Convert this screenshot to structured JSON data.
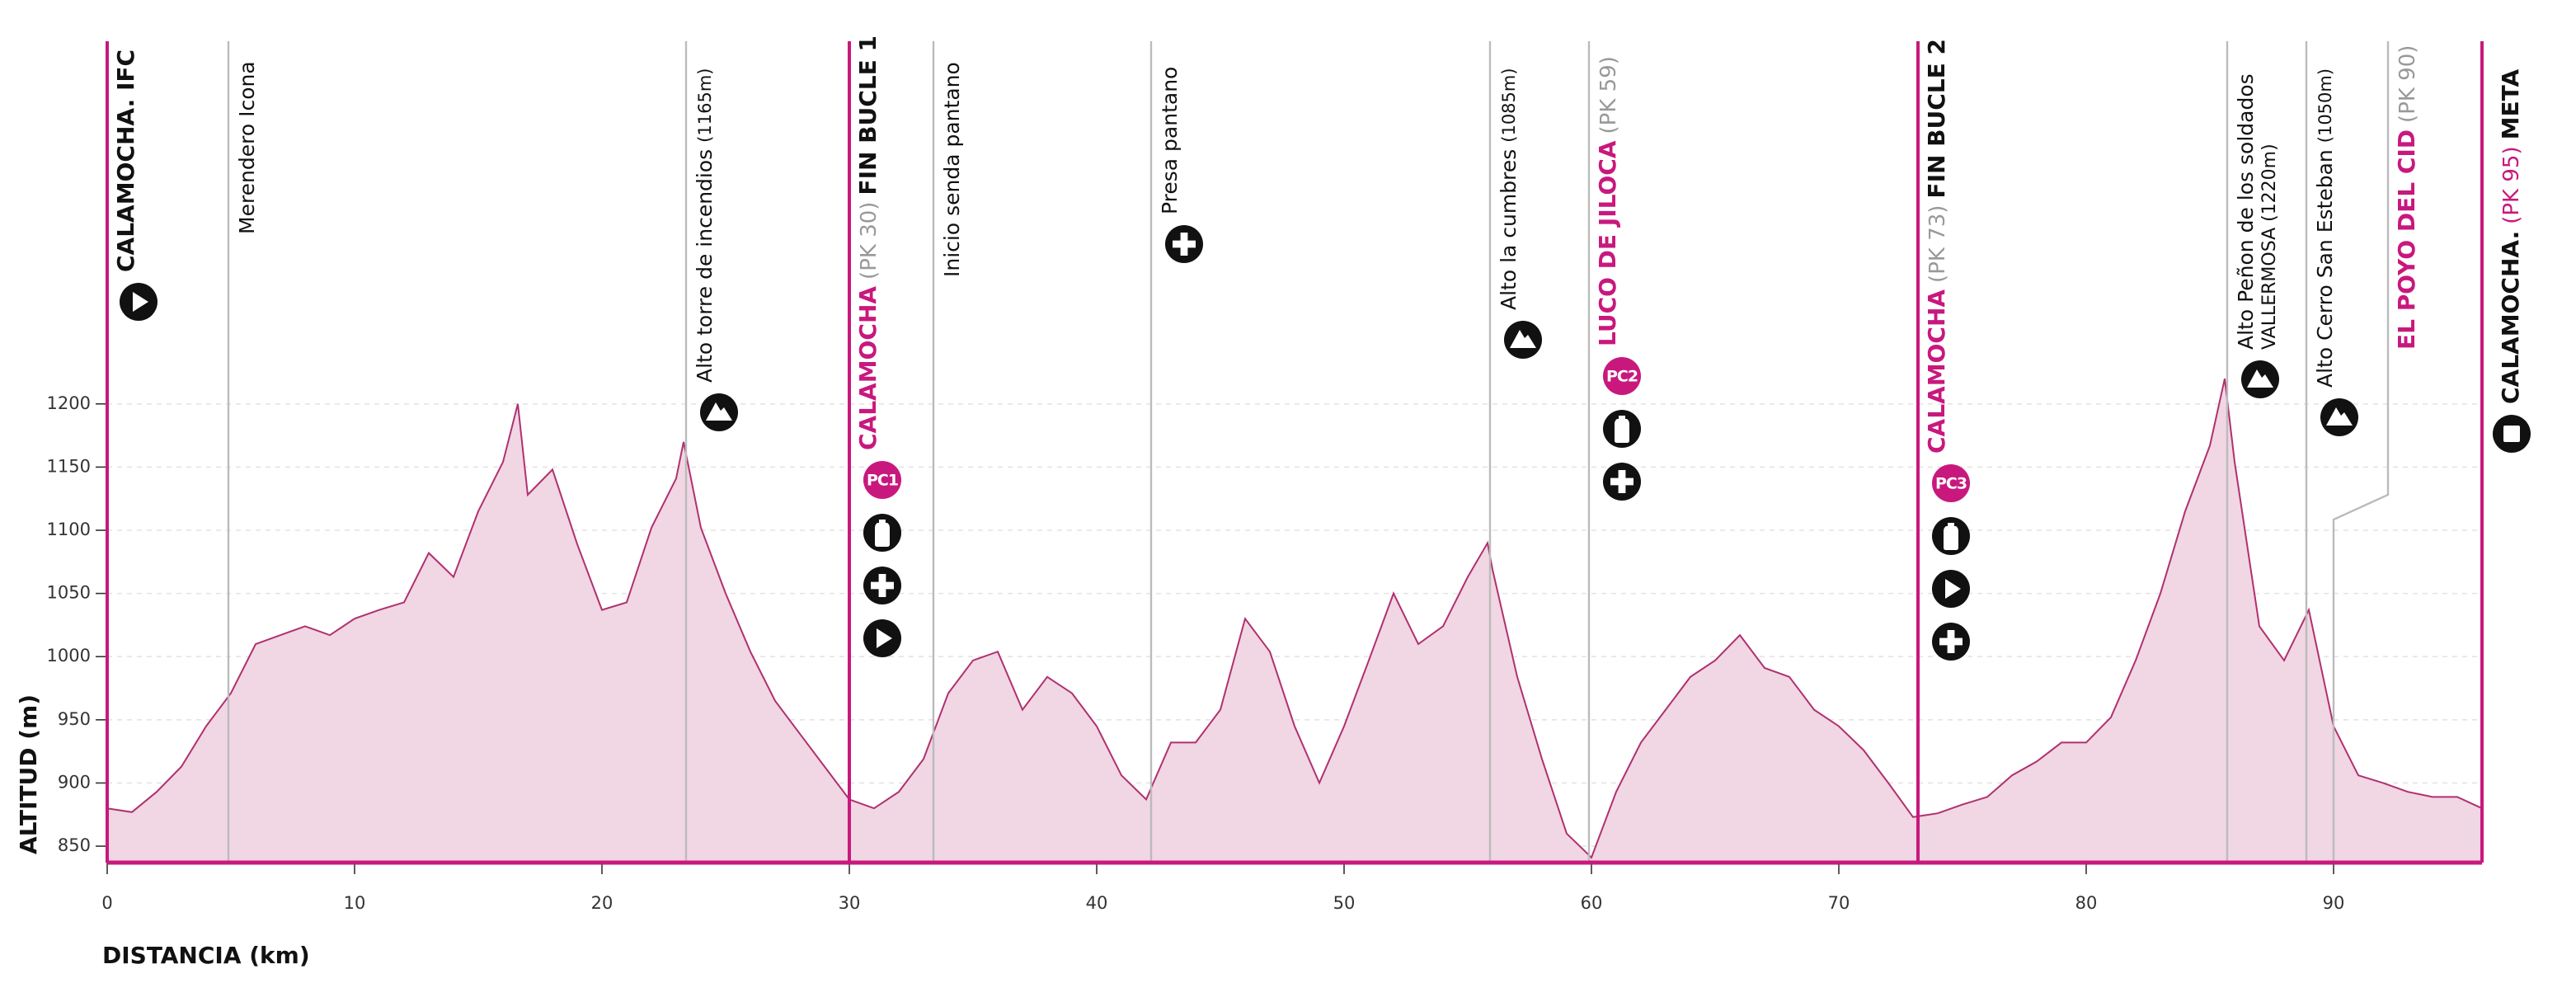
{
  "chart_data": {
    "type": "area",
    "x_label": "DISTANCIA (km)",
    "y_label": "ALTITUD (m)",
    "color": "#b03070",
    "fill_color": "#f1d6e3",
    "accent_color": "#c8187e",
    "xlim": [
      0,
      96
    ],
    "ylim": [
      837,
      1487
    ],
    "xticks": [
      0,
      10,
      20,
      30,
      40,
      50,
      60,
      70,
      80,
      90
    ],
    "yticks": [
      850,
      900,
      950,
      1000,
      1050,
      1100,
      1150,
      1200
    ],
    "grid": true,
    "x": [
      0,
      1,
      2,
      3,
      4,
      5,
      6,
      7,
      8,
      9,
      10,
      11,
      12,
      13,
      14,
      15,
      16,
      16.6,
      17,
      18,
      19,
      20,
      21,
      22,
      23,
      23.3,
      24,
      25,
      26,
      27,
      28,
      29,
      30,
      31,
      32,
      33,
      34,
      35,
      36,
      37,
      38,
      39,
      40,
      41,
      42,
      43,
      44,
      45,
      46,
      47,
      48,
      49,
      50,
      51,
      52,
      53,
      54,
      55,
      55.8,
      56,
      57,
      58,
      59,
      60,
      61,
      62,
      63,
      64,
      65,
      66,
      67,
      68,
      69,
      70,
      71,
      72,
      73,
      74,
      75,
      76,
      77,
      78,
      79,
      80,
      81,
      82,
      83,
      84,
      85,
      85.6,
      86,
      87,
      88,
      89,
      90,
      91,
      92,
      93,
      94,
      95,
      96
    ],
    "values": [
      880,
      877,
      893,
      913,
      945,
      971,
      1010,
      1017,
      1024,
      1017,
      1030,
      1037,
      1043,
      1082,
      1063,
      1115,
      1154,
      1200,
      1128,
      1148,
      1089,
      1037,
      1043,
      1102,
      1141,
      1170,
      1102,
      1050,
      1004,
      965,
      939,
      913,
      887,
      880,
      893,
      919,
      971,
      997,
      1004,
      958,
      984,
      971,
      945,
      906,
      887,
      932,
      932,
      958,
      1030,
      1004,
      945,
      900,
      945,
      997,
      1050,
      1010,
      1024,
      1063,
      1090,
      1069,
      984,
      919,
      860,
      841,
      893,
      932,
      958,
      984,
      997,
      1017,
      991,
      984,
      958,
      945,
      926,
      900,
      873,
      876,
      883,
      889,
      906,
      917,
      932,
      932,
      952,
      997,
      1050,
      1115,
      1167,
      1220,
      1154,
      1024,
      997,
      1037,
      945,
      906,
      900,
      893,
      889,
      889,
      880
    ],
    "waypoints": [
      {
        "km": 0,
        "name": "CALAMOCHA. IFC",
        "name_color": "#111",
        "bold": true,
        "line_color": "#c8187e"
      },
      {
        "km": 4.9,
        "name": "Merendero Icona",
        "name_color": "#111",
        "bold": false,
        "line_color": "#bbbbbb"
      },
      {
        "km": 23.4,
        "name": "Alto torre de incendios",
        "detail": "(1165m)",
        "detail_color": "#111",
        "name_color": "#111",
        "bold": false,
        "line_color": "#bbbbbb"
      },
      {
        "km": 30,
        "name": "CALAMOCHA",
        "detail": "(PK 30)",
        "detail_color": "#999",
        "suffix": "FIN BUCLE 1",
        "name_color": "#c8187e",
        "bold": true,
        "line_color": "#c8187e",
        "checkpoint": "PC1"
      },
      {
        "km": 33.4,
        "name": "Inicio senda pantano",
        "name_color": "#111",
        "bold": false,
        "line_color": "#bbbbbb"
      },
      {
        "km": 42.2,
        "name": "Presa pantano",
        "name_color": "#111",
        "bold": false,
        "line_color": "#bbbbbb"
      },
      {
        "km": 55.9,
        "name": "Alto la cumbres",
        "detail": "(1085m)",
        "detail_color": "#111",
        "name_color": "#111",
        "bold": false,
        "line_color": "#bbbbbb"
      },
      {
        "km": 59.9,
        "name": "LUCO DE JILOCA",
        "detail": "(PK 59)",
        "detail_color": "#999",
        "name_color": "#c8187e",
        "bold": true,
        "line_color": "#bbbbbb",
        "checkpoint": "PC2"
      },
      {
        "km": 73.2,
        "name": "CALAMOCHA",
        "detail": "(PK 73)",
        "detail_color": "#999",
        "suffix": "FIN BUCLE 2",
        "name_color": "#c8187e",
        "bold": true,
        "line_color": "#c8187e",
        "checkpoint": "PC3"
      },
      {
        "km": 85.7,
        "name": "Alto Peñon de los soldados",
        "line2": "VALLERMOSA (1220m)",
        "name_color": "#111",
        "bold": false,
        "line_color": "#bbbbbb"
      },
      {
        "km": 88.9,
        "name": "Alto Cerro San Esteban",
        "detail": "(1050m)",
        "detail_color": "#111",
        "name_color": "#111",
        "bold": false,
        "line_color": "#bbbbbb"
      },
      {
        "km": 90,
        "label_km": 92.2,
        "name": "EL POYO DEL CID",
        "detail": "(PK 90)",
        "detail_color": "#999",
        "name_color": "#c8187e",
        "bold": true,
        "line_color": "#bbbbbb"
      },
      {
        "km": 96,
        "name": "CALAMOCHA.",
        "detail": "(PK 95)",
        "detail_color": "#c8187e",
        "suffix": "META",
        "name_color": "#111",
        "bold": true,
        "line_color": "#c8187e"
      }
    ]
  }
}
